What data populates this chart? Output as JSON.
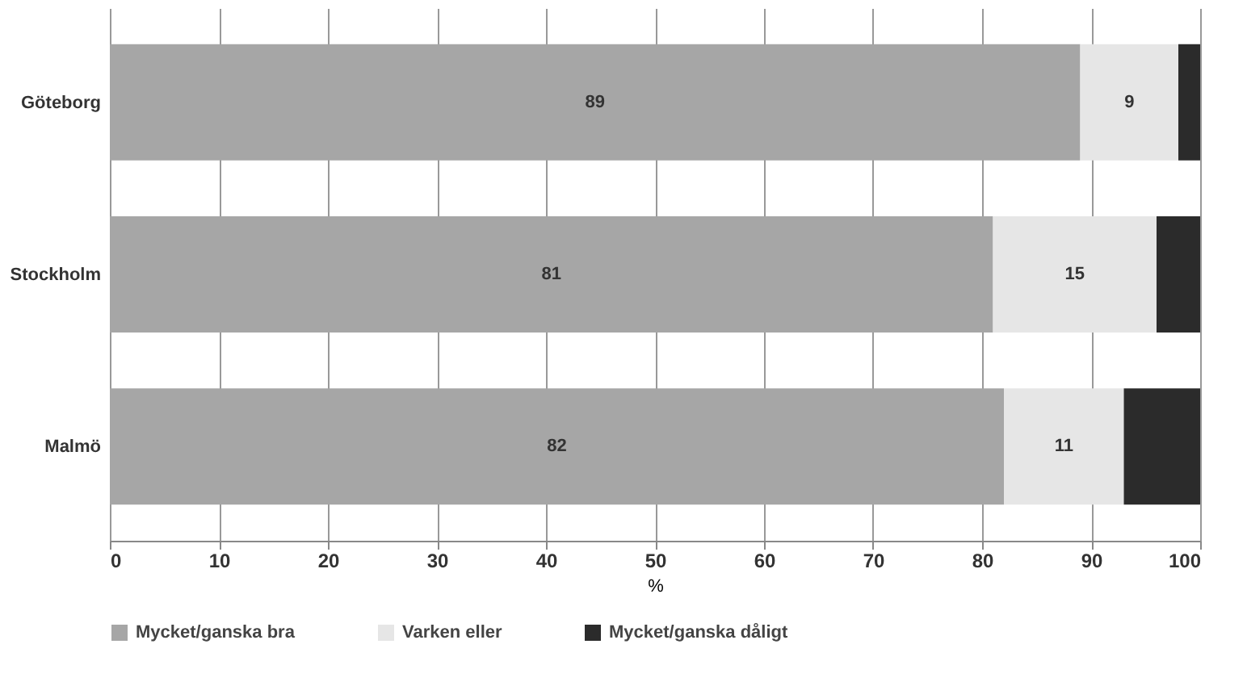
{
  "chart_data": {
    "type": "bar",
    "orientation": "horizontal",
    "stacked": true,
    "xlabel": "%",
    "categories": [
      "Göteborg",
      "Stockholm",
      "Malmö"
    ],
    "series": [
      {
        "name": "Mycket/ganska bra",
        "color": "#a6a6a6",
        "values": [
          89,
          81,
          82
        ],
        "value_labels": [
          "89",
          "81",
          "82"
        ]
      },
      {
        "name": "Varken eller",
        "color": "#e6e6e6",
        "values": [
          9,
          15,
          11
        ],
        "value_labels": [
          "9",
          "15",
          "11"
        ]
      },
      {
        "name": "Mycket/ganska dåligt",
        "color": "#2b2b2b",
        "values": [
          2,
          4,
          7
        ]
      }
    ],
    "xlim": [
      0,
      100
    ],
    "xticks": [
      0,
      10,
      20,
      30,
      40,
      50,
      60,
      70,
      80,
      90,
      100
    ],
    "grid": "x",
    "legend": "bottom"
  }
}
